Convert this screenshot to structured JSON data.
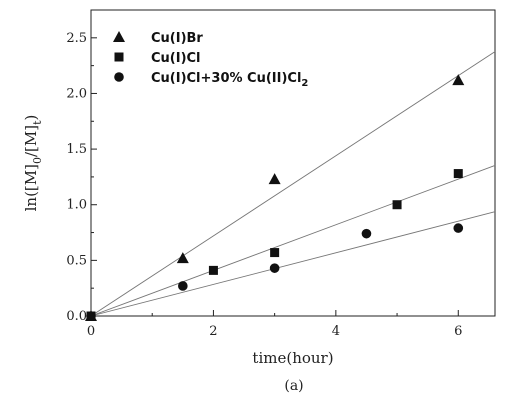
{
  "chart_data": {
    "type": "scatter",
    "xlabel": "time(hour)",
    "ylabel_parts": {
      "a": "ln([M]",
      "sub1": "0",
      "b": "/[M]",
      "sub2": "t",
      "c": ")"
    },
    "caption": "(a)",
    "xlim": [
      0,
      6.6
    ],
    "ylim": [
      0,
      2.75
    ],
    "xticks": [
      0,
      2,
      4,
      6
    ],
    "yticks": [
      0.0,
      0.5,
      1.0,
      1.5,
      2.0,
      2.5
    ],
    "xtick_labels": [
      "0",
      "2",
      "4",
      "6"
    ],
    "ytick_labels": [
      "0.0",
      "0.5",
      "1.0",
      "1.5",
      "2.0",
      "2.5"
    ],
    "legend_position": "top-left",
    "grid": false,
    "series": [
      {
        "name": "Cu(I)Br",
        "legend_parts": {
          "main": "Cu(I)Br"
        },
        "marker": "triangle",
        "x": [
          0,
          1.5,
          3,
          6
        ],
        "y": [
          0,
          0.52,
          1.23,
          2.12
        ],
        "fit_slope": 0.36
      },
      {
        "name": "Cu(I)Cl",
        "legend_parts": {
          "main": "Cu(I)Cl"
        },
        "marker": "square",
        "x": [
          0,
          2,
          3,
          5,
          6
        ],
        "y": [
          0,
          0.41,
          0.57,
          1.0,
          1.28
        ],
        "fit_slope": 0.205
      },
      {
        "name": "Cu(I)Cl+30% Cu(II)Cl2",
        "legend_parts": {
          "main": "Cu(I)Cl+30% Cu(II)Cl",
          "sub": "2"
        },
        "marker": "circle",
        "x": [
          0,
          1.5,
          3,
          4.5,
          6
        ],
        "y": [
          0,
          0.27,
          0.43,
          0.74,
          0.79
        ],
        "fit_slope": 0.142
      }
    ]
  }
}
